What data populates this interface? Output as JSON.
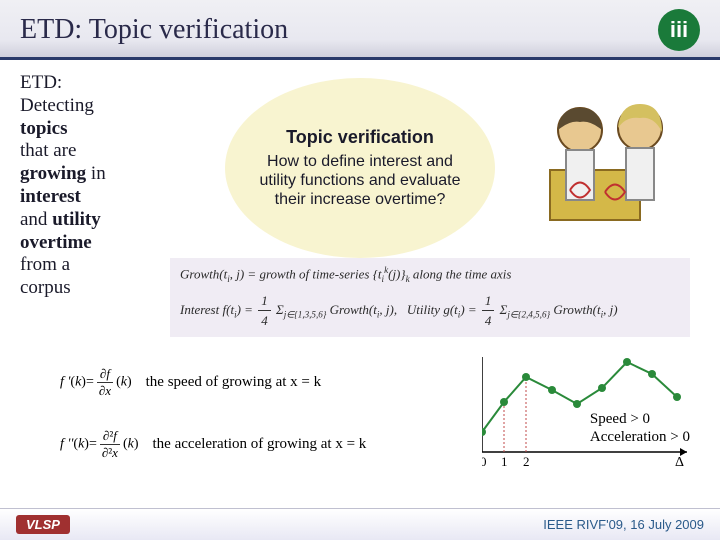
{
  "header": {
    "title": "ETD: Topic verification",
    "logo_bg": "#1a7a3a",
    "logo_text": "iii"
  },
  "left_text": {
    "lines": [
      "ETD:",
      "Detecting",
      "<b>topics</b>",
      "that are",
      "<b>growing</b> in",
      "<b>interest</b>",
      "and <b>utility</b>",
      "<b>overtime</b>",
      "from a",
      "corpus"
    ]
  },
  "bubble": {
    "title": "Topic verification",
    "text": "How to define interest and utility functions and evaluate their increase overtime?",
    "bg": "#f8f4d0"
  },
  "formula_band": {
    "line1": "Growth(t<sub>i</sub>, j) = growth of time-series {t<sub>i</sub><sup>k</sup>(j)}<sub>k</sub> along the time axis",
    "line2": "Interest f(t<sub>i</sub>) = (1/4) Σ<sub>j∈{1,3,5,6}</sub> Growth(t<sub>i</sub>, j),  Utility g(t<sub>i</sub>) = (1/4) Σ<sub>j∈{2,4,5,6}</sub> Growth(t<sub>i</sub>, j)",
    "bg": "#f0ecf4"
  },
  "derivatives": {
    "d1_formula": "f '(k) = ∂f/∂x (k)",
    "d1_label": "the speed of growing at x = k",
    "d2_formula": "f ''(k) = ∂²f/∂²x (k)",
    "d2_label": "the acceleration of growing at x = k"
  },
  "chart": {
    "type": "line",
    "curve_color": "#2a8a3a",
    "marker_color": "#2a8a3a",
    "axis_color": "#000000",
    "guide_color": "#c04848",
    "points": [
      {
        "x": 0,
        "y": 20
      },
      {
        "x": 22,
        "y": 50
      },
      {
        "x": 44,
        "y": 75
      },
      {
        "x": 70,
        "y": 62
      },
      {
        "x": 95,
        "y": 48
      },
      {
        "x": 120,
        "y": 64
      },
      {
        "x": 145,
        "y": 90
      },
      {
        "x": 170,
        "y": 78
      },
      {
        "x": 195,
        "y": 55
      }
    ],
    "xticks": [
      "0",
      "1",
      "2"
    ],
    "delta_label": "Δ",
    "annotations": [
      "Speed > 0",
      "Acceleration > 0"
    ]
  },
  "footer": {
    "logo": "VLSP",
    "logo_bg": "#a03030",
    "text": "IEEE RIVF'09, 16 July 2009"
  },
  "colors": {
    "header_border": "#2a3a6a",
    "text": "#1a1a2a"
  }
}
